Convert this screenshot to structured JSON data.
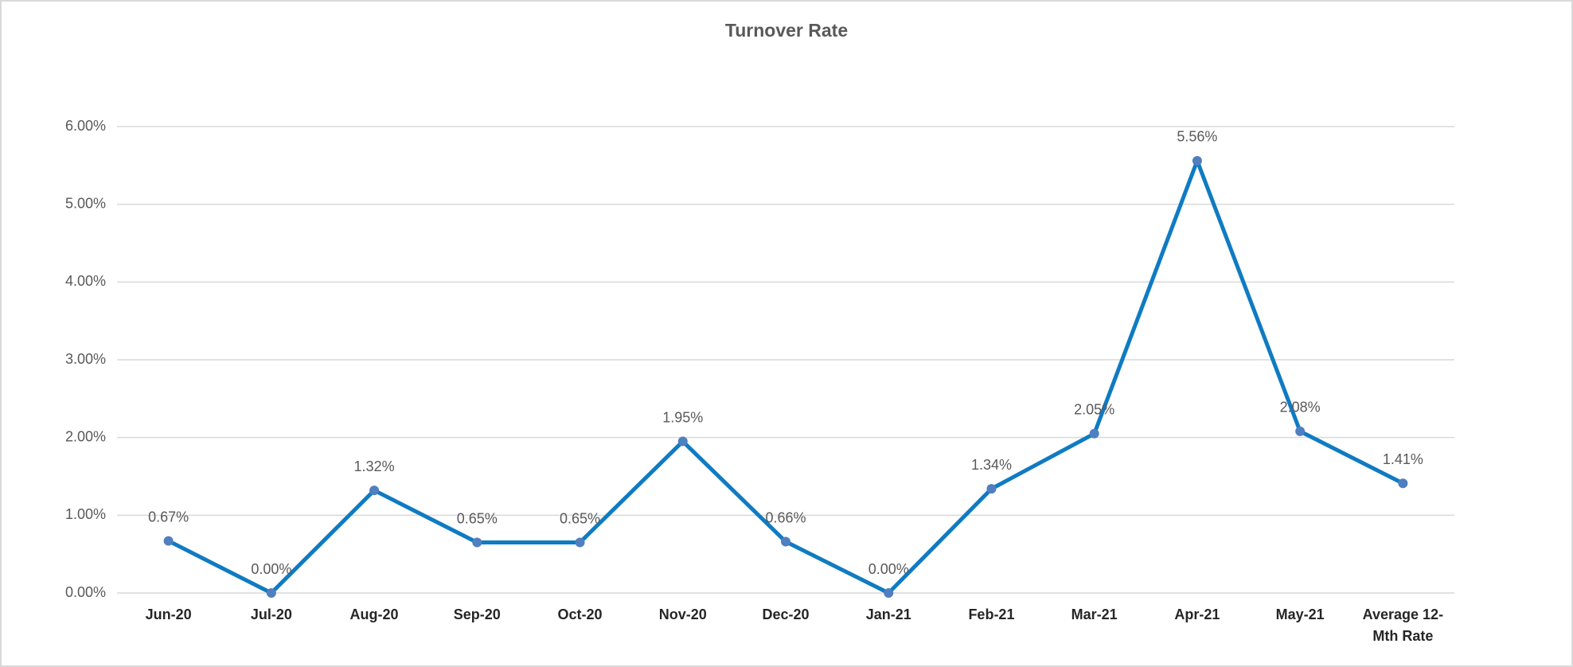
{
  "chart_data": {
    "type": "line",
    "title": "Turnover Rate",
    "categories": [
      "Jun-20",
      "Jul-20",
      "Aug-20",
      "Sep-20",
      "Oct-20",
      "Nov-20",
      "Dec-20",
      "Jan-21",
      "Feb-21",
      "Mar-21",
      "Apr-21",
      "May-21",
      "Average 12-Mth Rate"
    ],
    "series": [
      {
        "name": "Turnover Rate",
        "color": "#0f7bc2",
        "marker_color": "#4f7fbf",
        "values": [
          0.67,
          0.0,
          1.32,
          0.65,
          0.65,
          1.95,
          0.66,
          0.0,
          1.34,
          2.05,
          5.56,
          2.08,
          1.41
        ],
        "value_labels": [
          "0.67%",
          "0.00%",
          "1.32%",
          "0.65%",
          "0.65%",
          "1.95%",
          "0.66%",
          "0.00%",
          "1.34%",
          "2.05%",
          "5.56%",
          "2.08%",
          "1.41%"
        ]
      }
    ],
    "ylim": [
      0,
      6
    ],
    "yticks": [
      {
        "value": 0,
        "label": "0.00%"
      },
      {
        "value": 1,
        "label": "1.00%"
      },
      {
        "value": 2,
        "label": "2.00%"
      },
      {
        "value": 3,
        "label": "3.00%"
      },
      {
        "value": 4,
        "label": "4.00%"
      },
      {
        "value": 5,
        "label": "5.00%"
      },
      {
        "value": 6,
        "label": "6.00%"
      }
    ],
    "grid": true
  }
}
